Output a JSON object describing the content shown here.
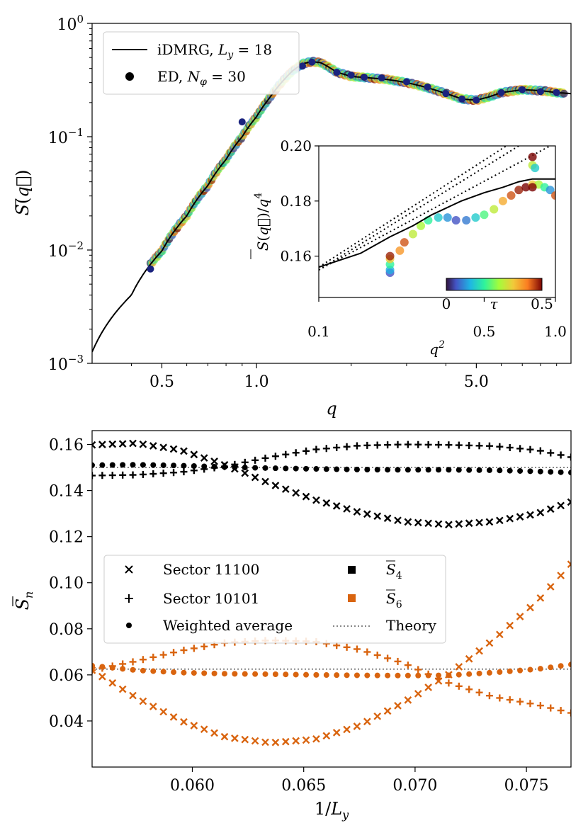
{
  "chart_data": [
    {
      "id": "top",
      "type": "line",
      "xscale": "log",
      "yscale": "log",
      "xlim": [
        0.3,
        10
      ],
      "ylim": [
        0.001,
        1
      ],
      "xlabel": "q",
      "ylabel": "S̄(q⃗)",
      "xticks": [
        {
          "v": 0.5,
          "label": "0.5"
        },
        {
          "v": 1.0,
          "label": "1.0"
        },
        {
          "v": 5.0,
          "label": "5.0"
        }
      ],
      "yticks": [
        {
          "v": 0.001,
          "base": "10",
          "exp": "−3"
        },
        {
          "v": 0.01,
          "base": "10",
          "exp": "−2"
        },
        {
          "v": 0.1,
          "base": "10",
          "exp": "−1"
        },
        {
          "v": 1,
          "base": "10",
          "exp": "0"
        }
      ],
      "legend": {
        "position": "top-left",
        "entries": [
          {
            "marker": "line",
            "label": "iDMRG, L_y = 18",
            "text": "iDMRG, ",
            "var": "L",
            "sub": "y",
            "rest": " = 18"
          },
          {
            "marker": "dot",
            "label": "ED, N_φ = 30",
            "text": "ED, ",
            "var": "N",
            "sub": "φ",
            "rest": " = 30"
          }
        ]
      },
      "series": [
        {
          "name": "iDMRG, Ly = 18",
          "style": "line",
          "color": "#000000",
          "x": [
            0.3,
            0.4,
            0.5,
            0.6,
            0.7,
            0.8,
            0.9,
            1.0,
            1.1,
            1.2,
            1.3,
            1.4,
            1.5,
            1.6,
            1.7,
            1.8,
            2.0,
            2.3,
            2.6,
            3.0,
            3.5,
            4.0,
            4.5,
            5.0,
            5.5,
            6.0,
            7.0,
            8.0,
            9.0,
            10.0
          ],
          "y": [
            0.00126,
            0.004,
            0.0098,
            0.02,
            0.037,
            0.063,
            0.1,
            0.15,
            0.22,
            0.3,
            0.38,
            0.44,
            0.46,
            0.45,
            0.41,
            0.37,
            0.34,
            0.33,
            0.32,
            0.3,
            0.27,
            0.24,
            0.215,
            0.21,
            0.225,
            0.245,
            0.26,
            0.255,
            0.245,
            0.24
          ]
        },
        {
          "name": "ED, Nφ = 30",
          "style": "dots",
          "color": "#1a237e",
          "x": [
            0.46,
            0.9,
            1.4,
            1.5,
            1.8,
            2.0,
            2.2,
            2.5,
            3.0,
            3.5,
            4.0,
            4.5,
            5.0,
            6.0,
            7.0,
            8.0,
            9.0
          ],
          "y": [
            0.0068,
            0.135,
            0.42,
            0.455,
            0.37,
            0.35,
            0.335,
            0.33,
            0.305,
            0.275,
            0.24,
            0.215,
            0.21,
            0.245,
            0.26,
            0.25,
            0.245
          ]
        }
      ],
      "inset": {
        "type": "scatter",
        "xscale": "log",
        "xlim": [
          0.1,
          1.0
        ],
        "ylim": [
          0.145,
          0.2
        ],
        "xlabel": "q²",
        "ylabel": "S̄(q⃗)/q⁴",
        "xticks": [
          {
            "v": 0.1,
            "label": "0.1"
          },
          {
            "v": 0.5,
            "label": "0.5"
          },
          {
            "v": 1.0,
            "label": "1.0"
          }
        ],
        "yticks": [
          {
            "v": 0.16,
            "label": "0.16"
          },
          {
            "v": 0.18,
            "label": "0.18"
          },
          {
            "v": 0.2,
            "label": "0.20"
          }
        ],
        "colorbar": {
          "label": "τ",
          "min_label": "0",
          "max_label": "0.5",
          "range": [
            0,
            0.5
          ]
        },
        "idmrg_curve": {
          "x": [
            0.1,
            0.15,
            0.2,
            0.25,
            0.3,
            0.4,
            0.5,
            0.6,
            0.7,
            0.8,
            0.9,
            1.0
          ],
          "y": [
            0.156,
            0.161,
            0.167,
            0.171,
            0.175,
            0.18,
            0.183,
            0.185,
            0.187,
            0.188,
            0.188,
            0.188
          ]
        },
        "theory_lines": [
          {
            "x": [
              0.1,
              0.62
            ],
            "y": [
              0.156,
              0.2
            ]
          },
          {
            "x": [
              0.1,
              0.7
            ],
            "y": [
              0.155,
              0.2
            ]
          },
          {
            "x": [
              0.1,
              0.95
            ],
            "y": [
              0.155,
              0.2
            ]
          }
        ],
        "points": [
          {
            "x": 0.2,
            "y": 0.154,
            "tau": 0.05
          },
          {
            "x": 0.2,
            "y": 0.155,
            "tau": 0.12
          },
          {
            "x": 0.2,
            "y": 0.157,
            "tau": 0.2
          },
          {
            "x": 0.2,
            "y": 0.159,
            "tau": 0.35
          },
          {
            "x": 0.2,
            "y": 0.16,
            "tau": 0.48
          },
          {
            "x": 0.22,
            "y": 0.162,
            "tau": 0.4
          },
          {
            "x": 0.23,
            "y": 0.165,
            "tau": 0.45
          },
          {
            "x": 0.25,
            "y": 0.168,
            "tau": 0.3
          },
          {
            "x": 0.27,
            "y": 0.171,
            "tau": 0.28
          },
          {
            "x": 0.29,
            "y": 0.173,
            "tau": 0.2
          },
          {
            "x": 0.32,
            "y": 0.174,
            "tau": 0.15
          },
          {
            "x": 0.35,
            "y": 0.174,
            "tau": 0.1
          },
          {
            "x": 0.38,
            "y": 0.173,
            "tau": 0.05
          },
          {
            "x": 0.42,
            "y": 0.173,
            "tau": 0.08
          },
          {
            "x": 0.46,
            "y": 0.174,
            "tau": 0.15
          },
          {
            "x": 0.5,
            "y": 0.175,
            "tau": 0.22
          },
          {
            "x": 0.55,
            "y": 0.177,
            "tau": 0.3
          },
          {
            "x": 0.6,
            "y": 0.18,
            "tau": 0.38
          },
          {
            "x": 0.65,
            "y": 0.182,
            "tau": 0.45
          },
          {
            "x": 0.7,
            "y": 0.184,
            "tau": 0.48
          },
          {
            "x": 0.75,
            "y": 0.185,
            "tau": 0.5
          },
          {
            "x": 0.8,
            "y": 0.186,
            "tau": 0.35
          },
          {
            "x": 0.85,
            "y": 0.186,
            "tau": 0.28
          },
          {
            "x": 0.9,
            "y": 0.185,
            "tau": 0.2
          },
          {
            "x": 0.95,
            "y": 0.184,
            "tau": 0.1
          },
          {
            "x": 1.0,
            "y": 0.182,
            "tau": 0.45
          },
          {
            "x": 0.8,
            "y": 0.196,
            "tau": 0.5
          },
          {
            "x": 0.8,
            "y": 0.193,
            "tau": 0.3
          },
          {
            "x": 0.82,
            "y": 0.192,
            "tau": 0.15
          },
          {
            "x": 0.8,
            "y": 0.185,
            "tau": 0.5
          }
        ]
      }
    },
    {
      "id": "bottom",
      "type": "scatter",
      "xlim": [
        0.0555,
        0.077
      ],
      "ylim": [
        0.02,
        0.166
      ],
      "xlabel": "1/L_y",
      "ylabel": "S̄_n",
      "xticks": [
        {
          "v": 0.06,
          "label": "0.060"
        },
        {
          "v": 0.065,
          "label": "0.065"
        },
        {
          "v": 0.07,
          "label": "0.070"
        },
        {
          "v": 0.075,
          "label": "0.075"
        }
      ],
      "yticks": [
        {
          "v": 0.04,
          "label": "0.04"
        },
        {
          "v": 0.06,
          "label": "0.06"
        },
        {
          "v": 0.08,
          "label": "0.08"
        },
        {
          "v": 0.1,
          "label": "0.10"
        },
        {
          "v": 0.12,
          "label": "0.12"
        },
        {
          "v": 0.14,
          "label": "0.14"
        },
        {
          "v": 0.16,
          "label": "0.16"
        }
      ],
      "legend": {
        "position": "center-left",
        "entries": [
          {
            "marker": "x",
            "label": "Sector 11100"
          },
          {
            "marker": "square-black",
            "label": "S̄₄",
            "base": "S",
            "sub": "4"
          },
          {
            "marker": "plus",
            "label": "Sector 10101"
          },
          {
            "marker": "square-orange",
            "label": "S̄₆",
            "base": "S",
            "sub": "6"
          },
          {
            "marker": "dot",
            "label": "Weighted average"
          },
          {
            "marker": "dotted-line",
            "label": "Theory"
          }
        ]
      },
      "theory": [
        {
          "name": "S̄₄ theory",
          "y": 0.15
        },
        {
          "name": "S̄₆ theory",
          "y": 0.0625
        }
      ],
      "curves": [
        {
          "name": "S̄₄ Sector 11100",
          "marker": "x",
          "color": "#000000",
          "knots_x": [
            0.0555,
            0.0575,
            0.0595,
            0.0615,
            0.0635,
            0.0655,
            0.0675,
            0.0695,
            0.0715,
            0.0735,
            0.0755,
            0.077
          ],
          "knots_y": [
            0.1598,
            0.1605,
            0.1575,
            0.151,
            0.143,
            0.136,
            0.1305,
            0.1265,
            0.1252,
            0.1265,
            0.13,
            0.135
          ]
        },
        {
          "name": "S̄₄ Sector 10101",
          "marker": "plus",
          "color": "#000000",
          "knots_x": [
            0.0555,
            0.0575,
            0.0595,
            0.0615,
            0.0635,
            0.0655,
            0.0675,
            0.0695,
            0.0715,
            0.0735,
            0.0755,
            0.077
          ],
          "knots_y": [
            0.1465,
            0.1468,
            0.148,
            0.1505,
            0.1545,
            0.1578,
            0.1595,
            0.16,
            0.1598,
            0.1593,
            0.1575,
            0.1545
          ]
        },
        {
          "name": "S̄₄ Weighted average",
          "marker": "dot",
          "color": "#000000",
          "knots_x": [
            0.0555,
            0.0575,
            0.0595,
            0.0615,
            0.0635,
            0.0655,
            0.0675,
            0.0695,
            0.0715,
            0.0735,
            0.0755,
            0.077
          ],
          "knots_y": [
            0.151,
            0.1512,
            0.1508,
            0.1502,
            0.1497,
            0.1494,
            0.1491,
            0.149,
            0.149,
            0.1488,
            0.1483,
            0.1478
          ]
        },
        {
          "name": "S̄₆ Sector 11100",
          "marker": "x",
          "color": "#d9640f",
          "knots_x": [
            0.0555,
            0.0575,
            0.0595,
            0.0615,
            0.0635,
            0.0655,
            0.0675,
            0.0695,
            0.0715,
            0.0735,
            0.0755,
            0.077
          ],
          "knots_y": [
            0.062,
            0.05,
            0.04,
            0.033,
            0.0305,
            0.032,
            0.038,
            0.048,
            0.06,
            0.075,
            0.092,
            0.108
          ]
        },
        {
          "name": "S̄₆ Sector 10101",
          "marker": "plus",
          "color": "#d9640f",
          "knots_x": [
            0.0555,
            0.0575,
            0.0595,
            0.0615,
            0.0635,
            0.0655,
            0.0675,
            0.0695,
            0.0715,
            0.0735,
            0.0755,
            0.077
          ],
          "knots_y": [
            0.062,
            0.066,
            0.0705,
            0.074,
            0.075,
            0.0745,
            0.071,
            0.065,
            0.0565,
            0.0505,
            0.047,
            0.0435
          ]
        },
        {
          "name": "S̄₆ Weighted average",
          "marker": "dot",
          "color": "#d9640f",
          "knots_x": [
            0.0555,
            0.0575,
            0.0595,
            0.0615,
            0.0635,
            0.0655,
            0.0675,
            0.0695,
            0.0715,
            0.0735,
            0.0755,
            0.077
          ],
          "knots_y": [
            0.064,
            0.062,
            0.061,
            0.0605,
            0.0603,
            0.06,
            0.0598,
            0.0597,
            0.0598,
            0.061,
            0.0625,
            0.0645
          ]
        }
      ]
    }
  ]
}
